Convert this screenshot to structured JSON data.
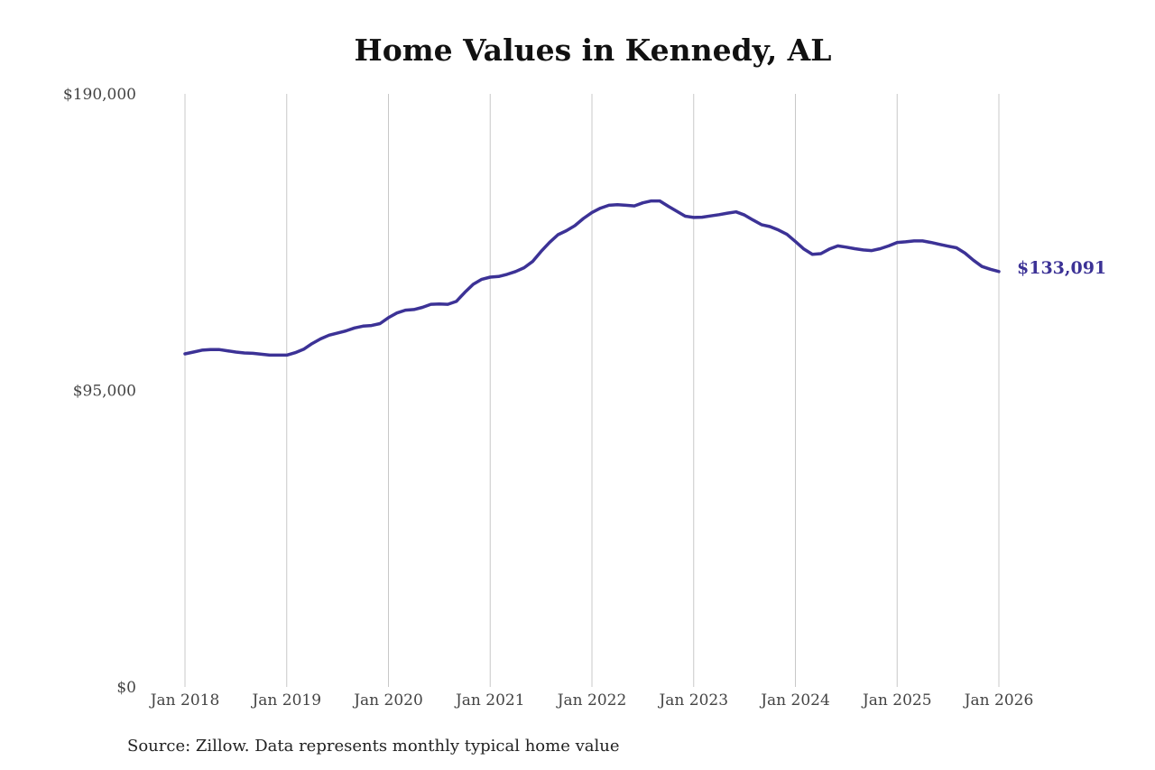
{
  "chart_data": {
    "type": "line",
    "title": "Home Values in Kennedy, AL",
    "xlabel": "",
    "ylabel": "",
    "x_tick_labels": [
      "Jan 2018",
      "Jan 2019",
      "Jan 2020",
      "Jan 2021",
      "Jan 2022",
      "Jan 2023",
      "Jan 2024",
      "Jan 2025",
      "Jan 2026"
    ],
    "y_tick_labels": [
      "$0",
      "$95,000",
      "$190,000"
    ],
    "y_ticks": [
      0,
      95000,
      190000
    ],
    "ylim": [
      0,
      190000
    ],
    "xlim": [
      "2018-01",
      "2026-01"
    ],
    "grid": "vertical",
    "line_color": "#3c3296",
    "end_label": "$133,091",
    "series": [
      {
        "x": [
          "2018-01",
          "2018-02",
          "2018-03",
          "2018-04",
          "2018-05",
          "2018-06",
          "2018-07",
          "2018-08",
          "2018-09",
          "2018-10",
          "2018-11",
          "2018-12",
          "2019-01",
          "2019-02",
          "2019-03",
          "2019-04",
          "2019-05",
          "2019-06",
          "2019-07",
          "2019-08",
          "2019-09",
          "2019-10",
          "2019-11",
          "2019-12",
          "2020-01",
          "2020-02",
          "2020-03",
          "2020-04",
          "2020-05",
          "2020-06",
          "2020-07",
          "2020-08",
          "2020-09",
          "2020-10",
          "2020-11",
          "2020-12",
          "2021-01",
          "2021-02",
          "2021-03",
          "2021-04",
          "2021-05",
          "2021-06",
          "2021-07",
          "2021-08",
          "2021-09",
          "2021-10",
          "2021-11",
          "2021-12",
          "2022-01",
          "2022-02",
          "2022-03",
          "2022-04",
          "2022-05",
          "2022-06",
          "2022-07",
          "2022-08",
          "2022-09",
          "2022-10",
          "2022-11",
          "2022-12",
          "2023-01",
          "2023-02",
          "2023-03",
          "2023-04",
          "2023-05",
          "2023-06",
          "2023-07",
          "2023-08",
          "2023-09",
          "2023-10",
          "2023-11",
          "2023-12",
          "2024-01",
          "2024-02",
          "2024-03",
          "2024-04",
          "2024-05",
          "2024-06",
          "2024-07",
          "2024-08",
          "2024-09",
          "2024-10",
          "2024-11",
          "2024-12",
          "2025-01",
          "2025-02",
          "2025-03",
          "2025-04",
          "2025-05",
          "2025-06",
          "2025-07",
          "2025-08",
          "2025-09",
          "2025-10",
          "2025-11",
          "2025-12",
          "2026-01"
        ],
        "values": [
          106700,
          107300,
          107900,
          108100,
          108100,
          107700,
          107300,
          107000,
          106900,
          106600,
          106300,
          106300,
          106300,
          107100,
          108200,
          110000,
          111500,
          112700,
          113400,
          114100,
          115000,
          115600,
          115800,
          116400,
          118300,
          119800,
          120700,
          120900,
          121600,
          122600,
          122700,
          122600,
          123500,
          126400,
          129000,
          130600,
          131300,
          131500,
          132200,
          133100,
          134300,
          136300,
          139500,
          142400,
          144900,
          146200,
          147800,
          150100,
          152000,
          153400,
          154300,
          154500,
          154300,
          154100,
          155100,
          155700,
          155700,
          154000,
          152400,
          150800,
          150400,
          150500,
          150900,
          151300,
          151800,
          152200,
          151200,
          149600,
          148100,
          147500,
          146400,
          145000,
          142700,
          140300,
          138600,
          138800,
          140300,
          141300,
          140900,
          140400,
          140000,
          139800,
          140400,
          141300,
          142400,
          142600,
          142900,
          142900,
          142400,
          141800,
          141200,
          140700,
          139000,
          136700,
          134700,
          133800,
          133091
        ]
      }
    ]
  },
  "source": "Source: Zillow. Data represents monthly typical home value"
}
